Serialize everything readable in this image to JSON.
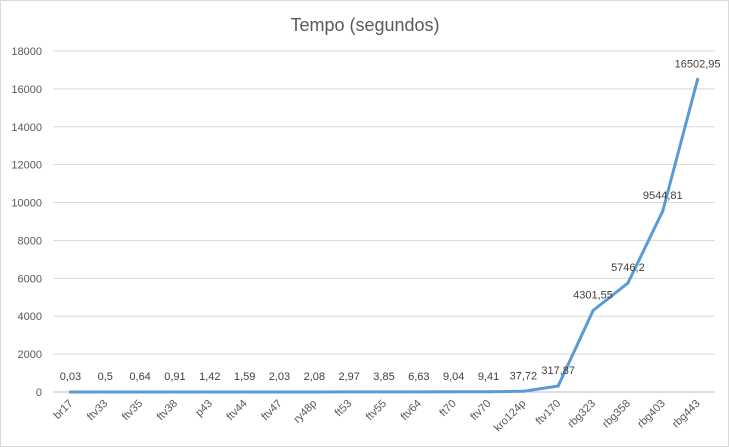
{
  "chart_data": {
    "type": "line",
    "title": "Tempo (segundos)",
    "xlabel": "",
    "ylabel": "",
    "ylim": [
      0,
      18000
    ],
    "yticks": [
      0,
      2000,
      4000,
      6000,
      8000,
      10000,
      12000,
      14000,
      16000,
      18000
    ],
    "grid": true,
    "legend": "none",
    "categories": [
      "br17",
      "ftv33",
      "ftv35",
      "ftv38",
      "p43",
      "ftv44",
      "ftv47",
      "ry48p",
      "ft53",
      "ftv55",
      "ftv64",
      "ft70",
      "ftv70",
      "kro124p",
      "ftv170",
      "rbg323",
      "rbg358",
      "rbg403",
      "rbg443"
    ],
    "series": [
      {
        "color": "#5b9bd5",
        "values": [
          0.03,
          0.5,
          0.64,
          0.91,
          1.42,
          1.59,
          2.03,
          2.08,
          2.97,
          3.85,
          6.63,
          9.04,
          9.41,
          37.72,
          317.87,
          4301.55,
          5746.2,
          9544.81,
          16502.95
        ],
        "labels": [
          "0,03",
          "0,5",
          "0,64",
          "0,91",
          "1,42",
          "1,59",
          "2,03",
          "2,08",
          "2,97",
          "3,85",
          "6,63",
          "9,04",
          "9,41",
          "37,72",
          "317,87",
          "4301,55",
          "5746,2",
          "9544,81",
          "16502,95"
        ]
      }
    ]
  }
}
